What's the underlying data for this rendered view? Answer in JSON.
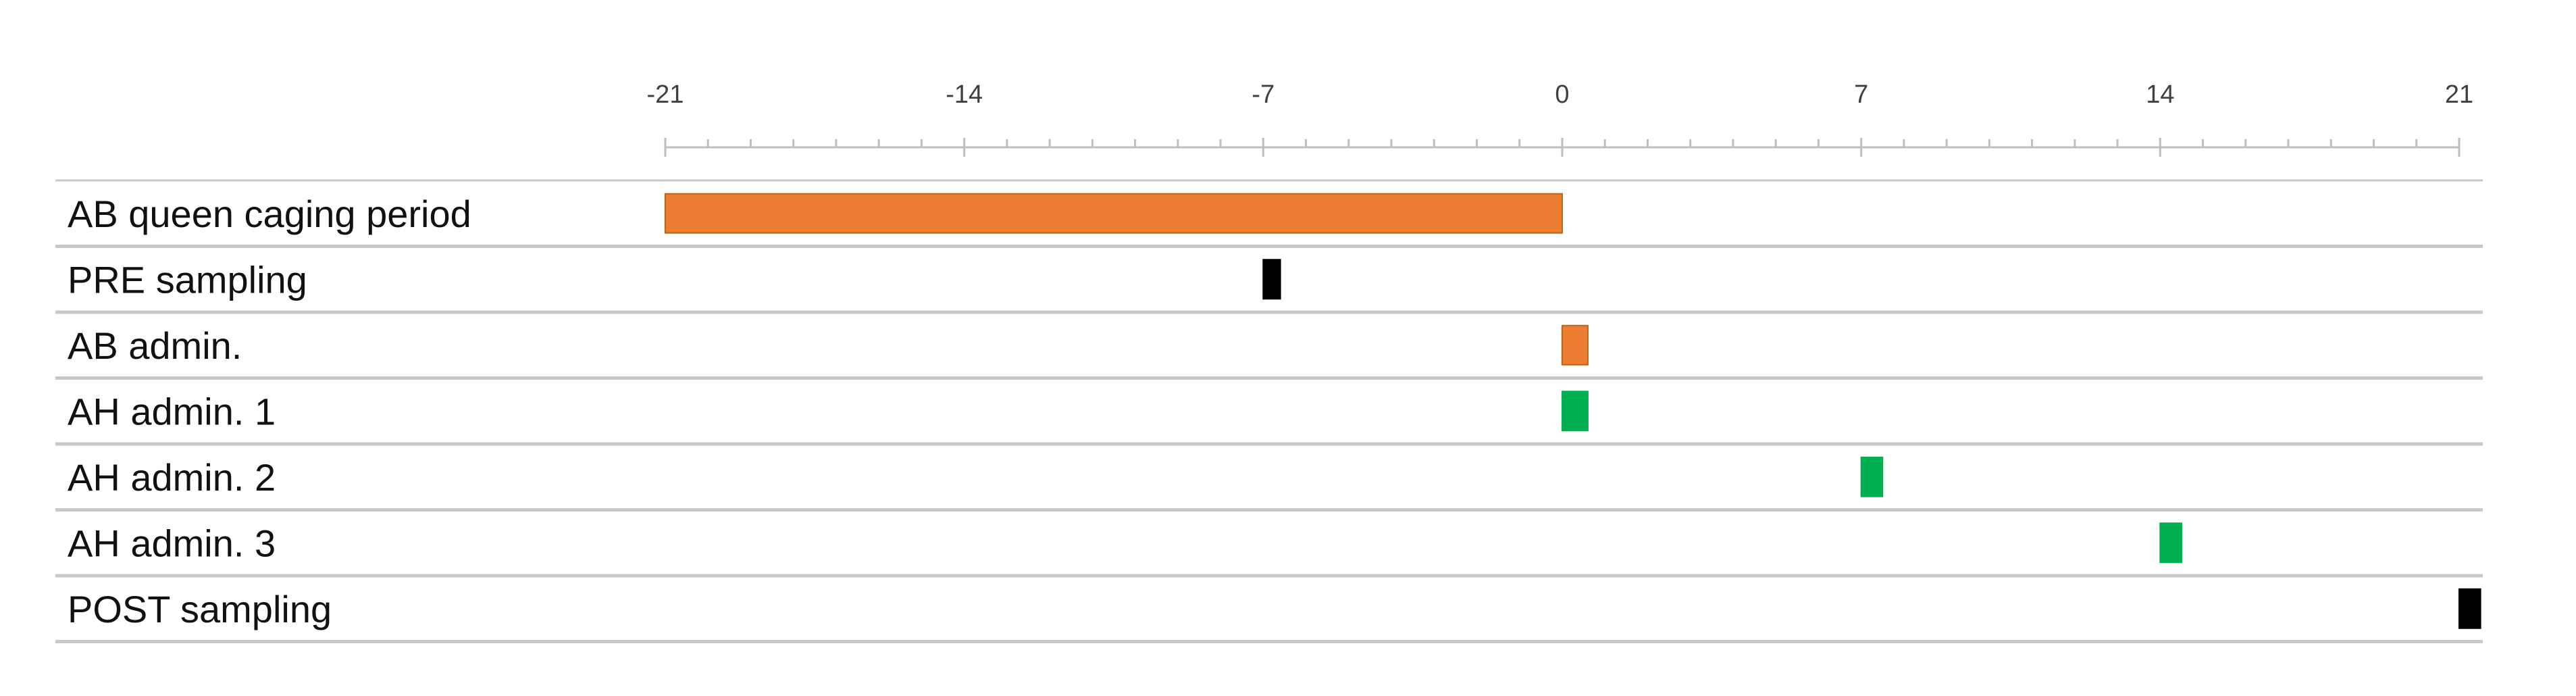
{
  "chart_data": {
    "type": "bar",
    "subtype": "gantt-timeline",
    "title": "",
    "xlabel": "",
    "ylabel": "",
    "xlim": [
      -21,
      21
    ],
    "x_ticks": [
      -21,
      -14,
      -7,
      0,
      7,
      14,
      21
    ],
    "grid": false,
    "legend": "none",
    "categories": [
      "AB queen caging period",
      "PRE sampling",
      "AB admin.",
      "AH admin. 1",
      "AH admin. 2",
      "AH admin. 3",
      "POST sampling"
    ],
    "bars": [
      {
        "label": "AB queen caging period",
        "start": -21,
        "end": 0,
        "color": "#ed7d31"
      },
      {
        "label": "PRE sampling",
        "start": -7,
        "end": -6.6,
        "color": "#000000"
      },
      {
        "label": "AB admin.",
        "start": 0,
        "end": 0.6,
        "color": "#ed7d31"
      },
      {
        "label": "AH admin. 1",
        "start": 0,
        "end": 0.6,
        "color": "#00b050"
      },
      {
        "label": "AH admin. 2",
        "start": 7,
        "end": 7.5,
        "color": "#00b050"
      },
      {
        "label": "AH admin. 3",
        "start": 14,
        "end": 14.5,
        "color": "#00b050"
      },
      {
        "label": "POST sampling",
        "start": 21,
        "end": 21.5,
        "color": "#000000"
      }
    ]
  }
}
